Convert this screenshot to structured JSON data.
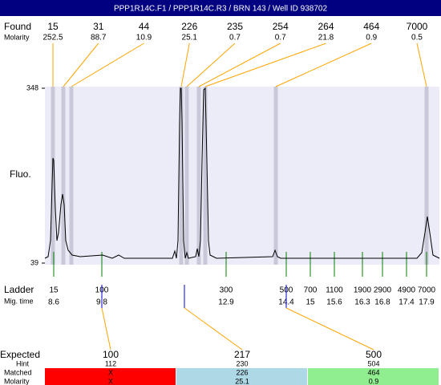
{
  "header": {
    "title": "PPP1R14C.F1 / PPP1R14C.R3 / BRN 143 / Well ID 938702"
  },
  "chart_data": {
    "type": "electropherogram",
    "y_label": "Fluo.",
    "ylim": [
      39,
      348
    ],
    "yticks": [
      39,
      348
    ],
    "xlim": [
      8.38,
      18.22
    ],
    "trace": {
      "color": "#000000",
      "x": [
        8.38,
        8.46,
        8.52,
        8.56,
        8.58,
        8.6,
        8.64,
        8.68,
        8.72,
        8.78,
        8.82,
        8.86,
        8.9,
        8.96,
        9.06,
        9.26,
        9.82,
        10.06,
        10.22,
        10.36,
        11.56,
        11.62,
        11.66,
        11.7,
        11.74,
        11.76,
        11.78,
        11.8,
        11.84,
        11.88,
        11.92,
        11.96,
        12.14,
        12.18,
        12.22,
        12.26,
        12.3,
        12.34,
        12.38,
        12.42,
        12.46,
        12.5,
        12.66,
        14.06,
        14.12,
        14.18,
        14.26,
        17.66,
        17.78,
        17.86,
        17.92,
        17.98,
        18.06,
        18.22
      ],
      "values": [
        47.5,
        50.3,
        78.7,
        177.9,
        224.6,
        220.4,
        135.4,
        78.7,
        92.8,
        142.4,
        160.9,
        142.4,
        78.7,
        61.7,
        53.2,
        50.3,
        53.2,
        47.5,
        53.2,
        47.5,
        47.5,
        60.3,
        47.5,
        78.7,
        291.2,
        348,
        348,
        291.2,
        78.7,
        47.5,
        57.4,
        47.5,
        50.3,
        64.5,
        50.3,
        78.7,
        220.4,
        345.1,
        348,
        220.4,
        78.7,
        53.2,
        47.5,
        50.3,
        61.7,
        50.3,
        47.5,
        47.5,
        57.4,
        92.8,
        121.2,
        92.8,
        53.2,
        47.5
      ]
    },
    "found": {
      "label": "Found",
      "molarity_label": "Molarity",
      "color": "#ffa500",
      "band_color": "#c8c8d8",
      "sizes": [
        15,
        31,
        44,
        226,
        235,
        254,
        264,
        464,
        7000
      ],
      "molarity": [
        252.5,
        88.7,
        10.9,
        25.1,
        0.7,
        0.7,
        21.8,
        0.9,
        0.5
      ],
      "x": [
        8.58,
        8.84,
        9.04,
        11.78,
        11.92,
        12.22,
        12.38,
        14.14,
        17.9
      ]
    },
    "ladder": {
      "label": "Ladder",
      "time_label": "Mig. time",
      "color": "#008000",
      "sizes": [
        15,
        100,
        300,
        500,
        700,
        1100,
        1900,
        2900,
        4900,
        7000
      ],
      "times": [
        8.6,
        9.8,
        12.9,
        14.4,
        15,
        15.6,
        16.3,
        16.8,
        17.4,
        17.9
      ]
    },
    "expected": {
      "label": "Expected",
      "hint_label": "Hint",
      "matched_label": "Matched",
      "molarity_label": "Molarity",
      "line_color": "#ffa500",
      "mark_color": "#0000cc",
      "values": [
        100,
        217,
        500
      ],
      "hints": [
        112,
        230,
        504
      ],
      "matched": [
        "X",
        226,
        464
      ],
      "molarity": [
        "X",
        25.1,
        0.9
      ],
      "x": [
        9.8,
        11.86,
        14.4
      ],
      "colors": [
        "#ff0000",
        "#add8e6",
        "#90ee90"
      ]
    }
  }
}
